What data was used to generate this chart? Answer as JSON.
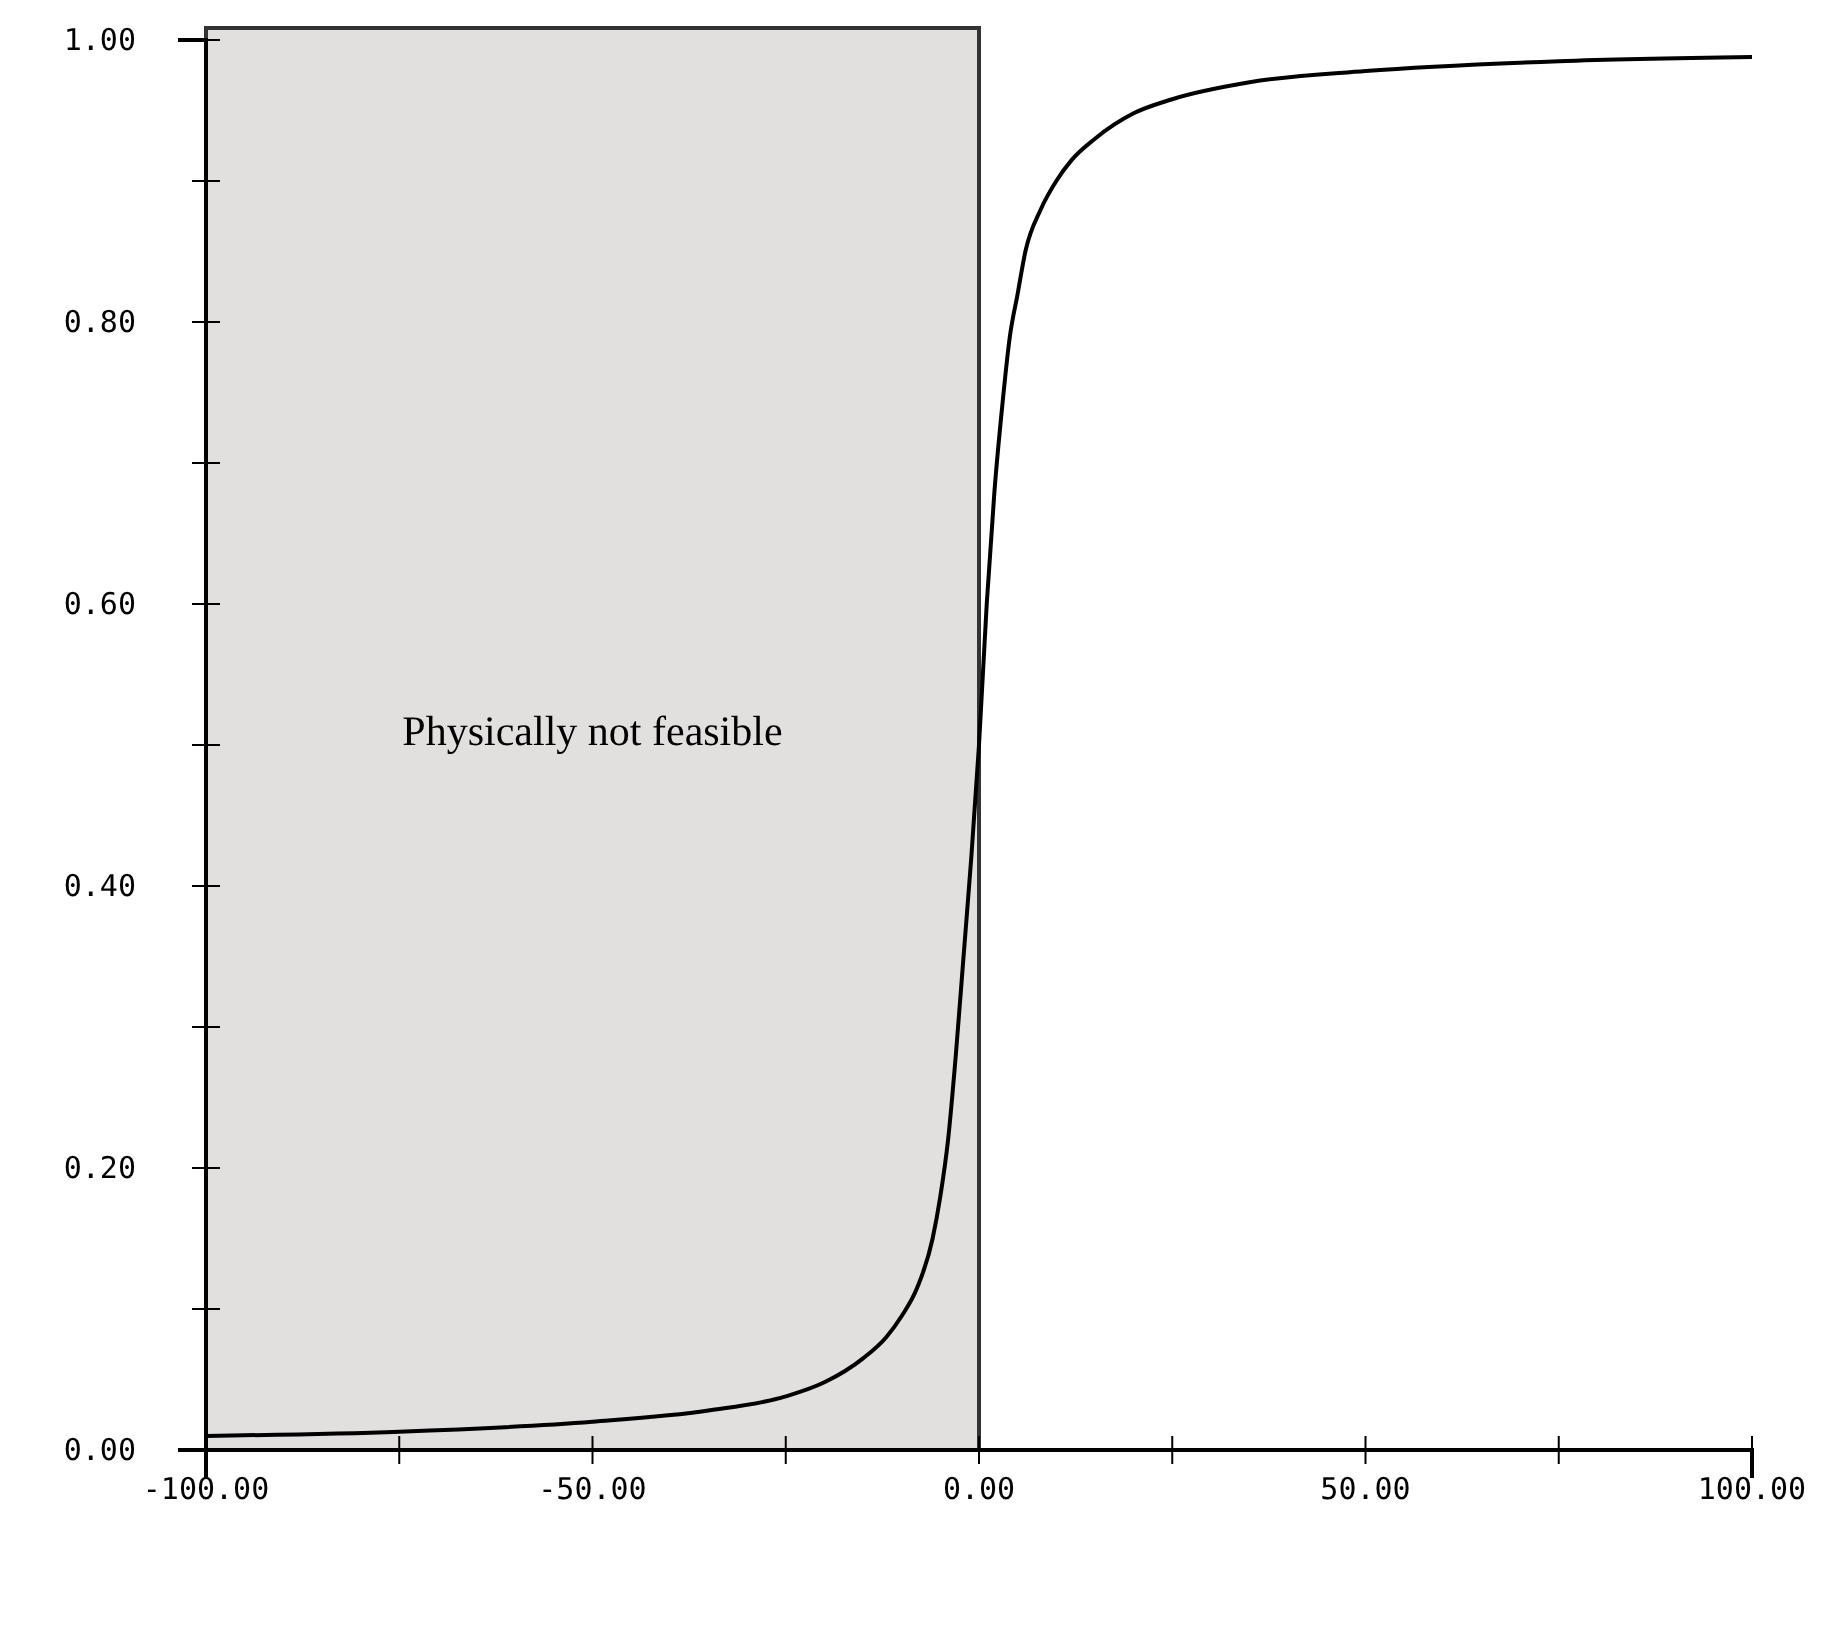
{
  "chart_data": {
    "type": "line",
    "x": [
      -100,
      -75,
      -50,
      -35,
      -25,
      -20,
      -15,
      -12,
      -10,
      -8,
      -6,
      -5,
      -4,
      -3,
      -2,
      -1,
      0,
      1,
      2,
      3,
      4,
      5,
      6,
      8,
      10,
      12,
      15,
      20,
      25,
      35,
      50,
      75,
      100
    ],
    "series": [
      {
        "color": "#000000",
        "values": [
          0.01,
          0.013,
          0.02,
          0.028,
          0.038,
          0.048,
          0.065,
          0.08,
          0.095,
          0.115,
          0.15,
          0.18,
          0.22,
          0.28,
          0.35,
          0.42,
          0.5,
          0.6,
          0.68,
          0.74,
          0.79,
          0.82,
          0.85,
          0.88,
          0.9,
          0.915,
          0.93,
          0.948,
          0.958,
          0.97,
          0.978,
          0.985,
          0.988
        ]
      }
    ],
    "xlim": [
      -100,
      100
    ],
    "xticks": [
      {
        "value": -100,
        "label": "-100.00"
      },
      {
        "value": -75,
        "label": null
      },
      {
        "value": -50,
        "label": "-50.00"
      },
      {
        "value": -25,
        "label": null
      },
      {
        "value": 0,
        "label": "0.00"
      },
      {
        "value": 25,
        "label": null
      },
      {
        "value": 50,
        "label": "50.00"
      },
      {
        "value": 75,
        "label": null
      },
      {
        "value": 100,
        "label": "100.00"
      }
    ],
    "ylim": [
      0,
      1
    ],
    "yticks": [
      {
        "value": 0,
        "label": "0.00"
      },
      {
        "value": 0.1,
        "label": null
      },
      {
        "value": 0.2,
        "label": "0.20"
      },
      {
        "value": 0.3,
        "label": null
      },
      {
        "value": 0.4,
        "label": "0.40"
      },
      {
        "value": 0.5,
        "label": null
      },
      {
        "value": 0.6,
        "label": "0.60"
      },
      {
        "value": 0.7,
        "label": null
      },
      {
        "value": 0.8,
        "label": "0.80"
      },
      {
        "value": 0.9,
        "label": null
      },
      {
        "value": 1,
        "label": "1.00"
      }
    ],
    "bands": [
      {
        "axis": "x",
        "from": -100,
        "to": 0,
        "label": "Physically not feasible",
        "color": "#e2dfdf"
      }
    ],
    "grid": false,
    "marker": "none",
    "line_style": "solid"
  }
}
